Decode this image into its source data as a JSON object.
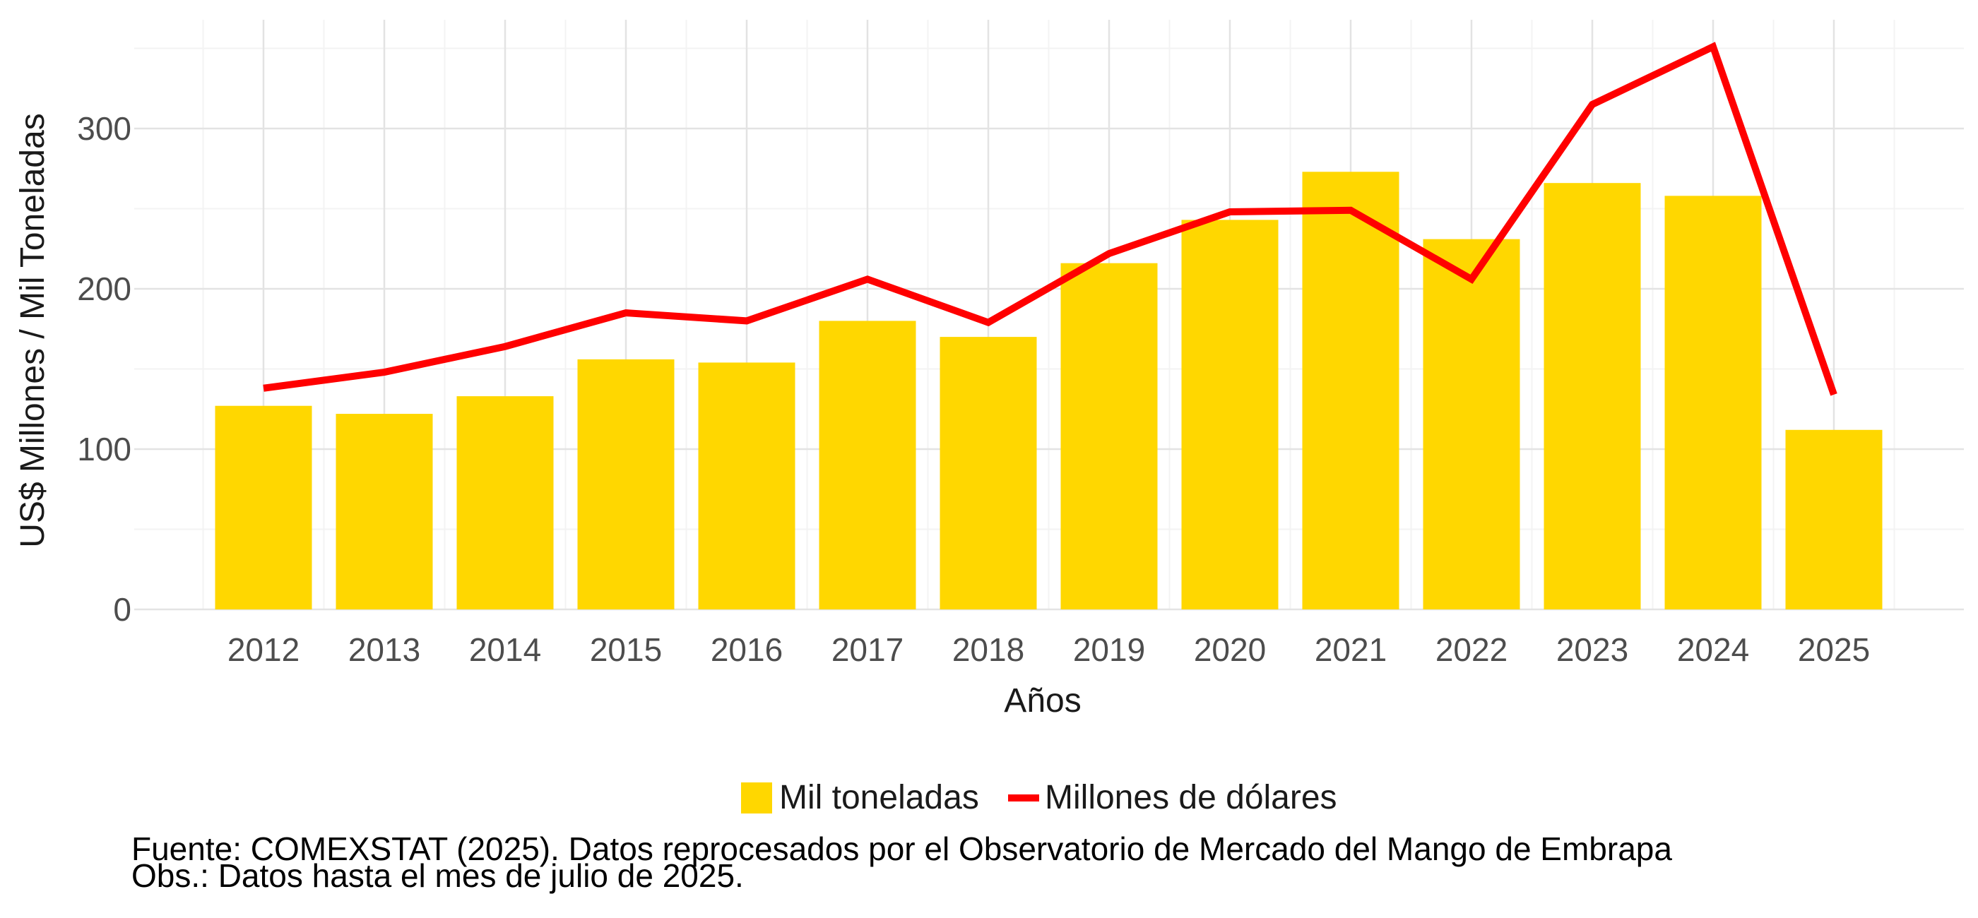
{
  "chart_data": {
    "type": "bar",
    "categories": [
      "2012",
      "2013",
      "2014",
      "2015",
      "2016",
      "2017",
      "2018",
      "2019",
      "2020",
      "2021",
      "2022",
      "2023",
      "2024",
      "2025"
    ],
    "series": [
      {
        "name": "Mil toneladas",
        "type": "bar",
        "color": "#FFD700",
        "values": [
          127,
          122,
          133,
          156,
          154,
          180,
          170,
          216,
          243,
          273,
          231,
          266,
          258,
          112
        ]
      },
      {
        "name": "Millones de dólares",
        "type": "line",
        "color": "#FF0000",
        "values": [
          138,
          148,
          164,
          185,
          180,
          206,
          179,
          222,
          248,
          249,
          206,
          315,
          351,
          134
        ]
      }
    ],
    "xlabel": "Años",
    "ylabel": "US$ Millones / Mil Toneladas",
    "ylim": [
      0,
      350
    ],
    "yticks": [
      "0",
      "100",
      "200",
      "300"
    ],
    "grid": true,
    "legend_position": "bottom",
    "caption": [
      "Fuente: COMEXSTAT (2025). Datos reprocesados por el Observatorio de Mercado del Mango de Embrapa",
      "Obs.: Datos hasta el mes de julio de 2025."
    ]
  }
}
